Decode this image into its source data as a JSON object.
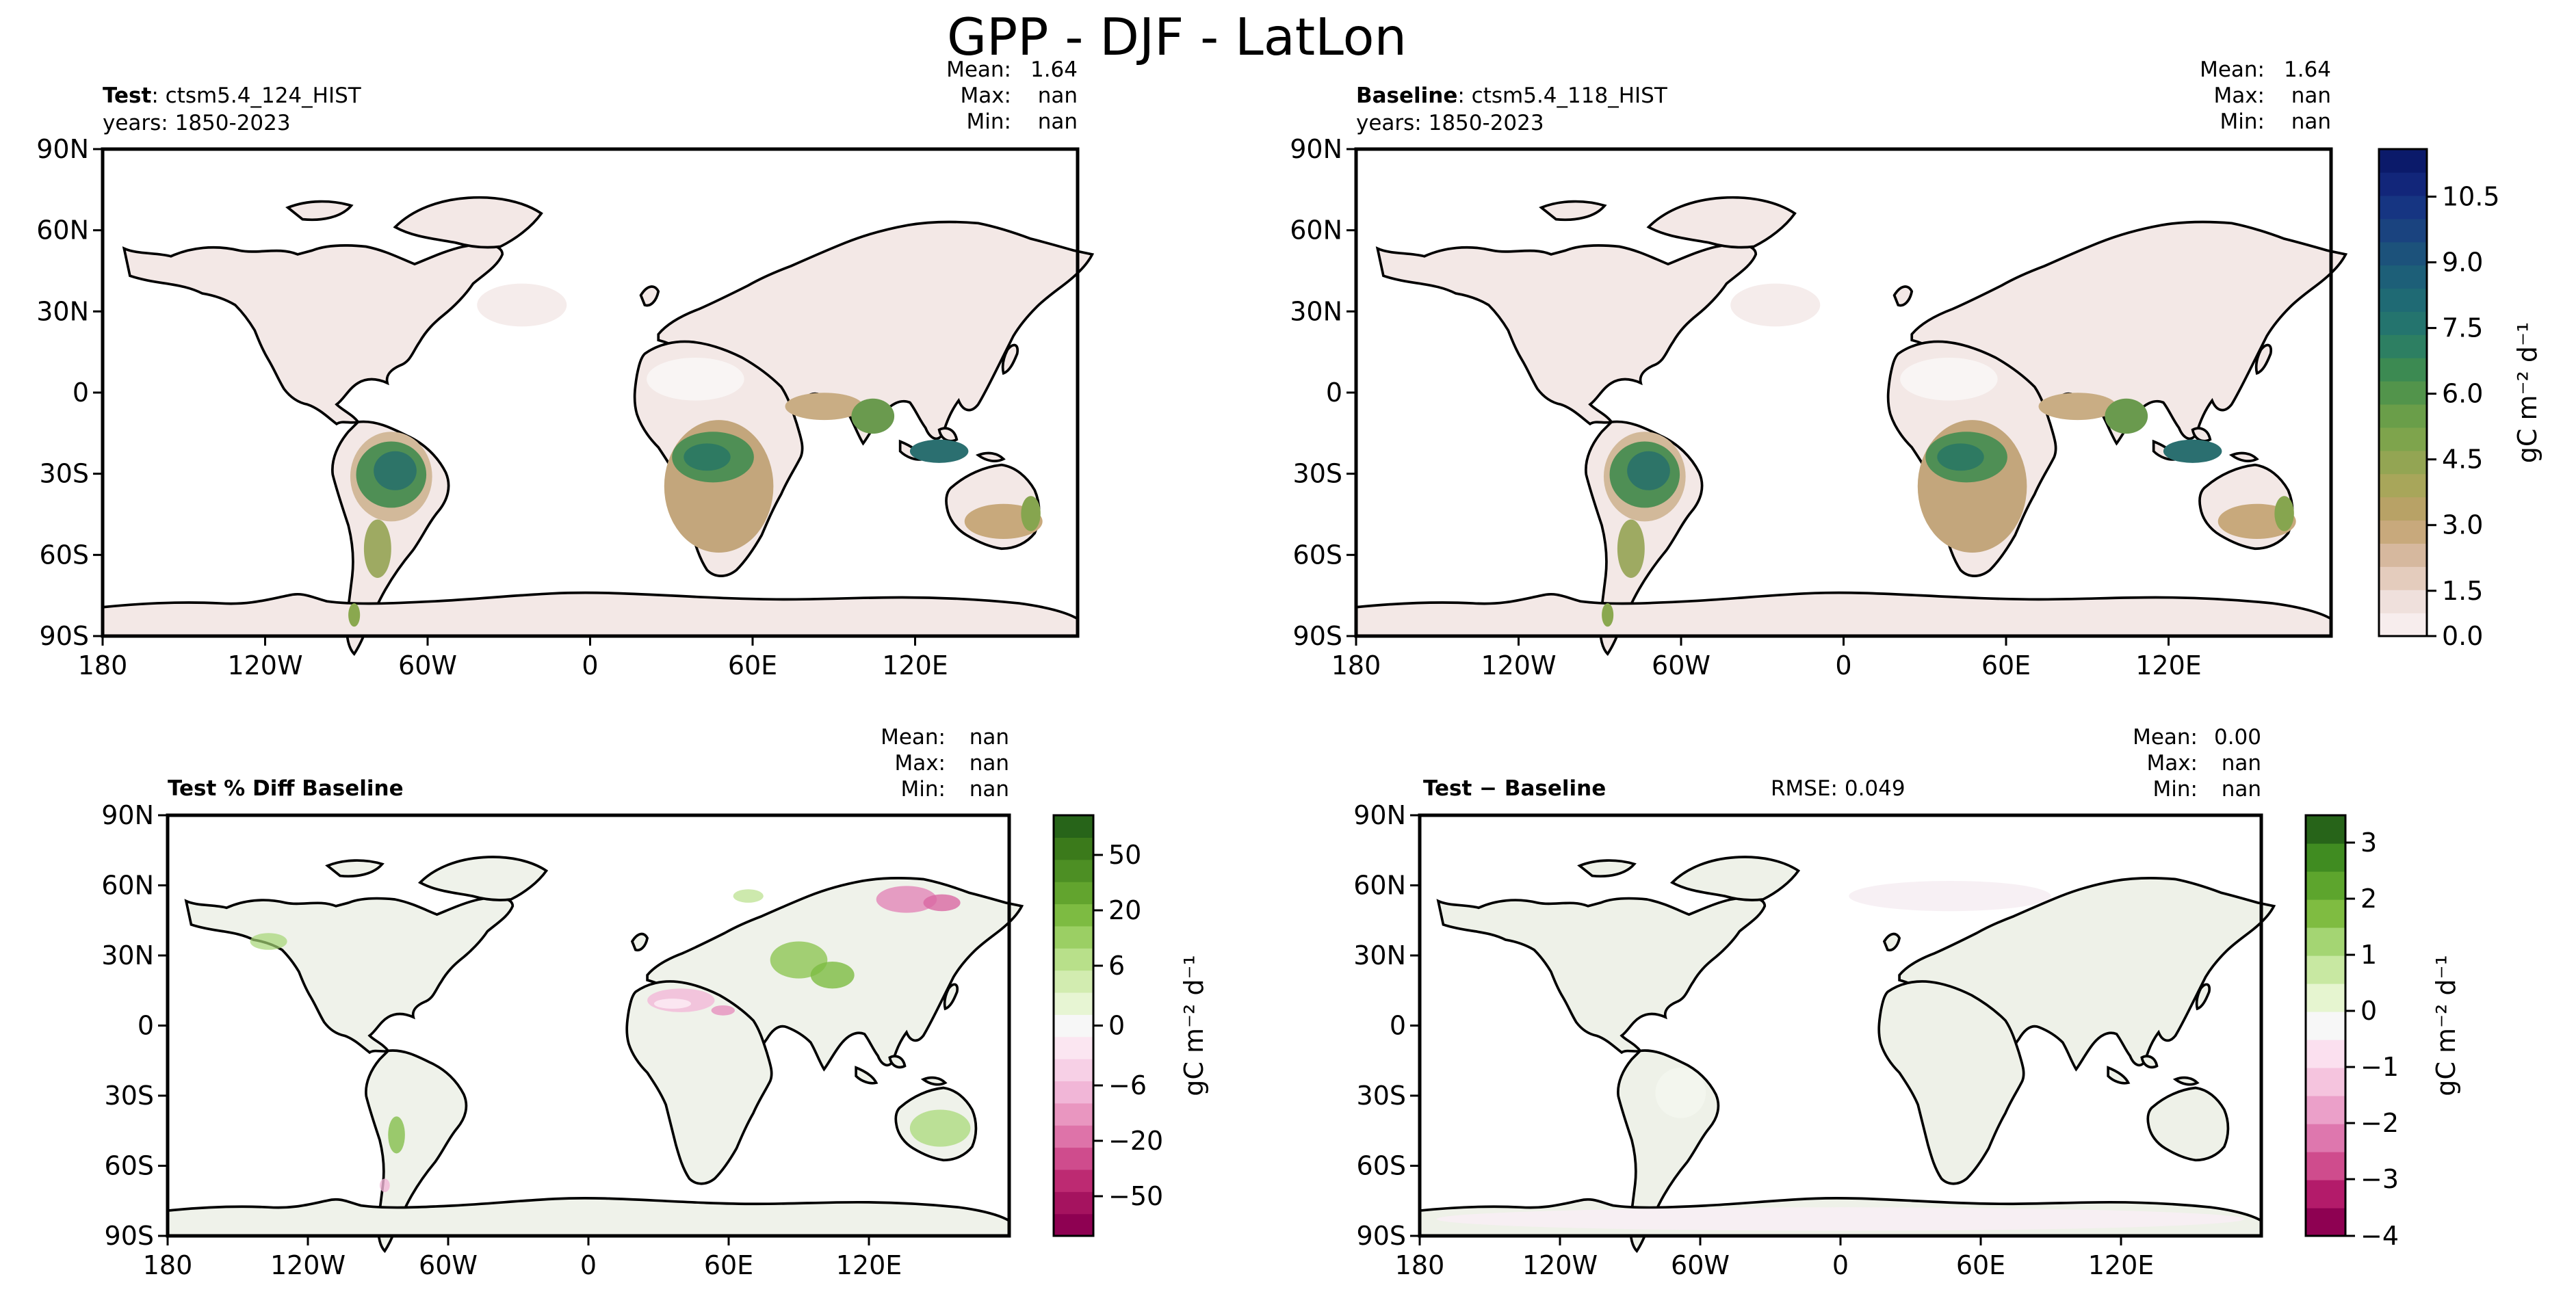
{
  "figure": {
    "title": "GPP - DJF - LatLon"
  },
  "axis_labels": {
    "lat": [
      "90N",
      "60N",
      "30N",
      "0",
      "30S",
      "60S",
      "90S"
    ],
    "lon": [
      "180",
      "120W",
      "60W",
      "0",
      "60E",
      "120E"
    ]
  },
  "panels": {
    "test": {
      "label_bold": "Test",
      "label_rest": ": ctsm5.4_124_HIST",
      "years": "years: 1850-2023",
      "stats": [
        {
          "key": "Mean:",
          "value": "1.64"
        },
        {
          "key": "Max:",
          "value": "nan"
        },
        {
          "key": "Min:",
          "value": "nan"
        }
      ]
    },
    "baseline": {
      "label_bold": "Baseline",
      "label_rest": ": ctsm5.4_118_HIST",
      "years": "years: 1850-2023",
      "stats": [
        {
          "key": "Mean:",
          "value": "1.64"
        },
        {
          "key": "Max:",
          "value": "nan"
        },
        {
          "key": "Min:",
          "value": "nan"
        }
      ]
    },
    "pctdiff": {
      "label_bold": "Test % Diff Baseline",
      "stats": [
        {
          "key": "Mean:",
          "value": "nan"
        },
        {
          "key": "Max:",
          "value": "nan"
        },
        {
          "key": "Min:",
          "value": "nan"
        }
      ]
    },
    "diff": {
      "label_bold": "Test − Baseline",
      "rmse": "RMSE: 0.049",
      "stats": [
        {
          "key": "Mean:",
          "value": "0.00"
        },
        {
          "key": "Max:",
          "value": "nan"
        },
        {
          "key": "Min:",
          "value": "nan"
        }
      ]
    }
  },
  "colorbars": {
    "abs": {
      "label": "gC m⁻² d⁻¹",
      "ticks": [
        "10.5",
        "9.0",
        "7.5",
        "6.0",
        "4.5",
        "3.0",
        "1.5",
        "0.0"
      ],
      "colors": [
        "#f7eded",
        "#efe0dc",
        "#e4ccbd",
        "#d6b89e",
        "#c8a97c",
        "#b8a266",
        "#a8a65a",
        "#93a553",
        "#7ea44c",
        "#6a9e49",
        "#52944b",
        "#3c8a52",
        "#2d7f62",
        "#24746e",
        "#1f6a74",
        "#1d5f78",
        "#1c527b",
        "#1a437f",
        "#163582",
        "#12267a",
        "#0b1a6a"
      ]
    },
    "pct": {
      "label": "gC m⁻² d⁻¹",
      "ticks": [
        "50",
        "20",
        "6",
        "0",
        "−6",
        "−20",
        "−50"
      ],
      "colors": [
        "#8e0152",
        "#a5135f",
        "#bd2a72",
        "#cf4c8d",
        "#de73a9",
        "#e996c0",
        "#f1b6d7",
        "#f7d0e6",
        "#fbe6f1",
        "#f7f7f7",
        "#e7f5d3",
        "#d2ecb0",
        "#b8e08a",
        "#9bcf64",
        "#7dbb42",
        "#62a42e",
        "#4d8f24",
        "#3b7a1b",
        "#276419"
      ]
    },
    "diff": {
      "label": "gC m⁻² d⁻¹",
      "ticks": [
        "3",
        "2",
        "1",
        "0",
        "−1",
        "−2",
        "−3",
        "−4"
      ],
      "colors": [
        "#8e0152",
        "#b31b6a",
        "#cf4c8d",
        "#de77ae",
        "#eba0c9",
        "#f5c4de",
        "#fbe0ef",
        "#f7f7f7",
        "#e6f5d0",
        "#c8e8a2",
        "#a4d573",
        "#7fbc41",
        "#5da52d",
        "#408c21",
        "#276419"
      ]
    }
  }
}
